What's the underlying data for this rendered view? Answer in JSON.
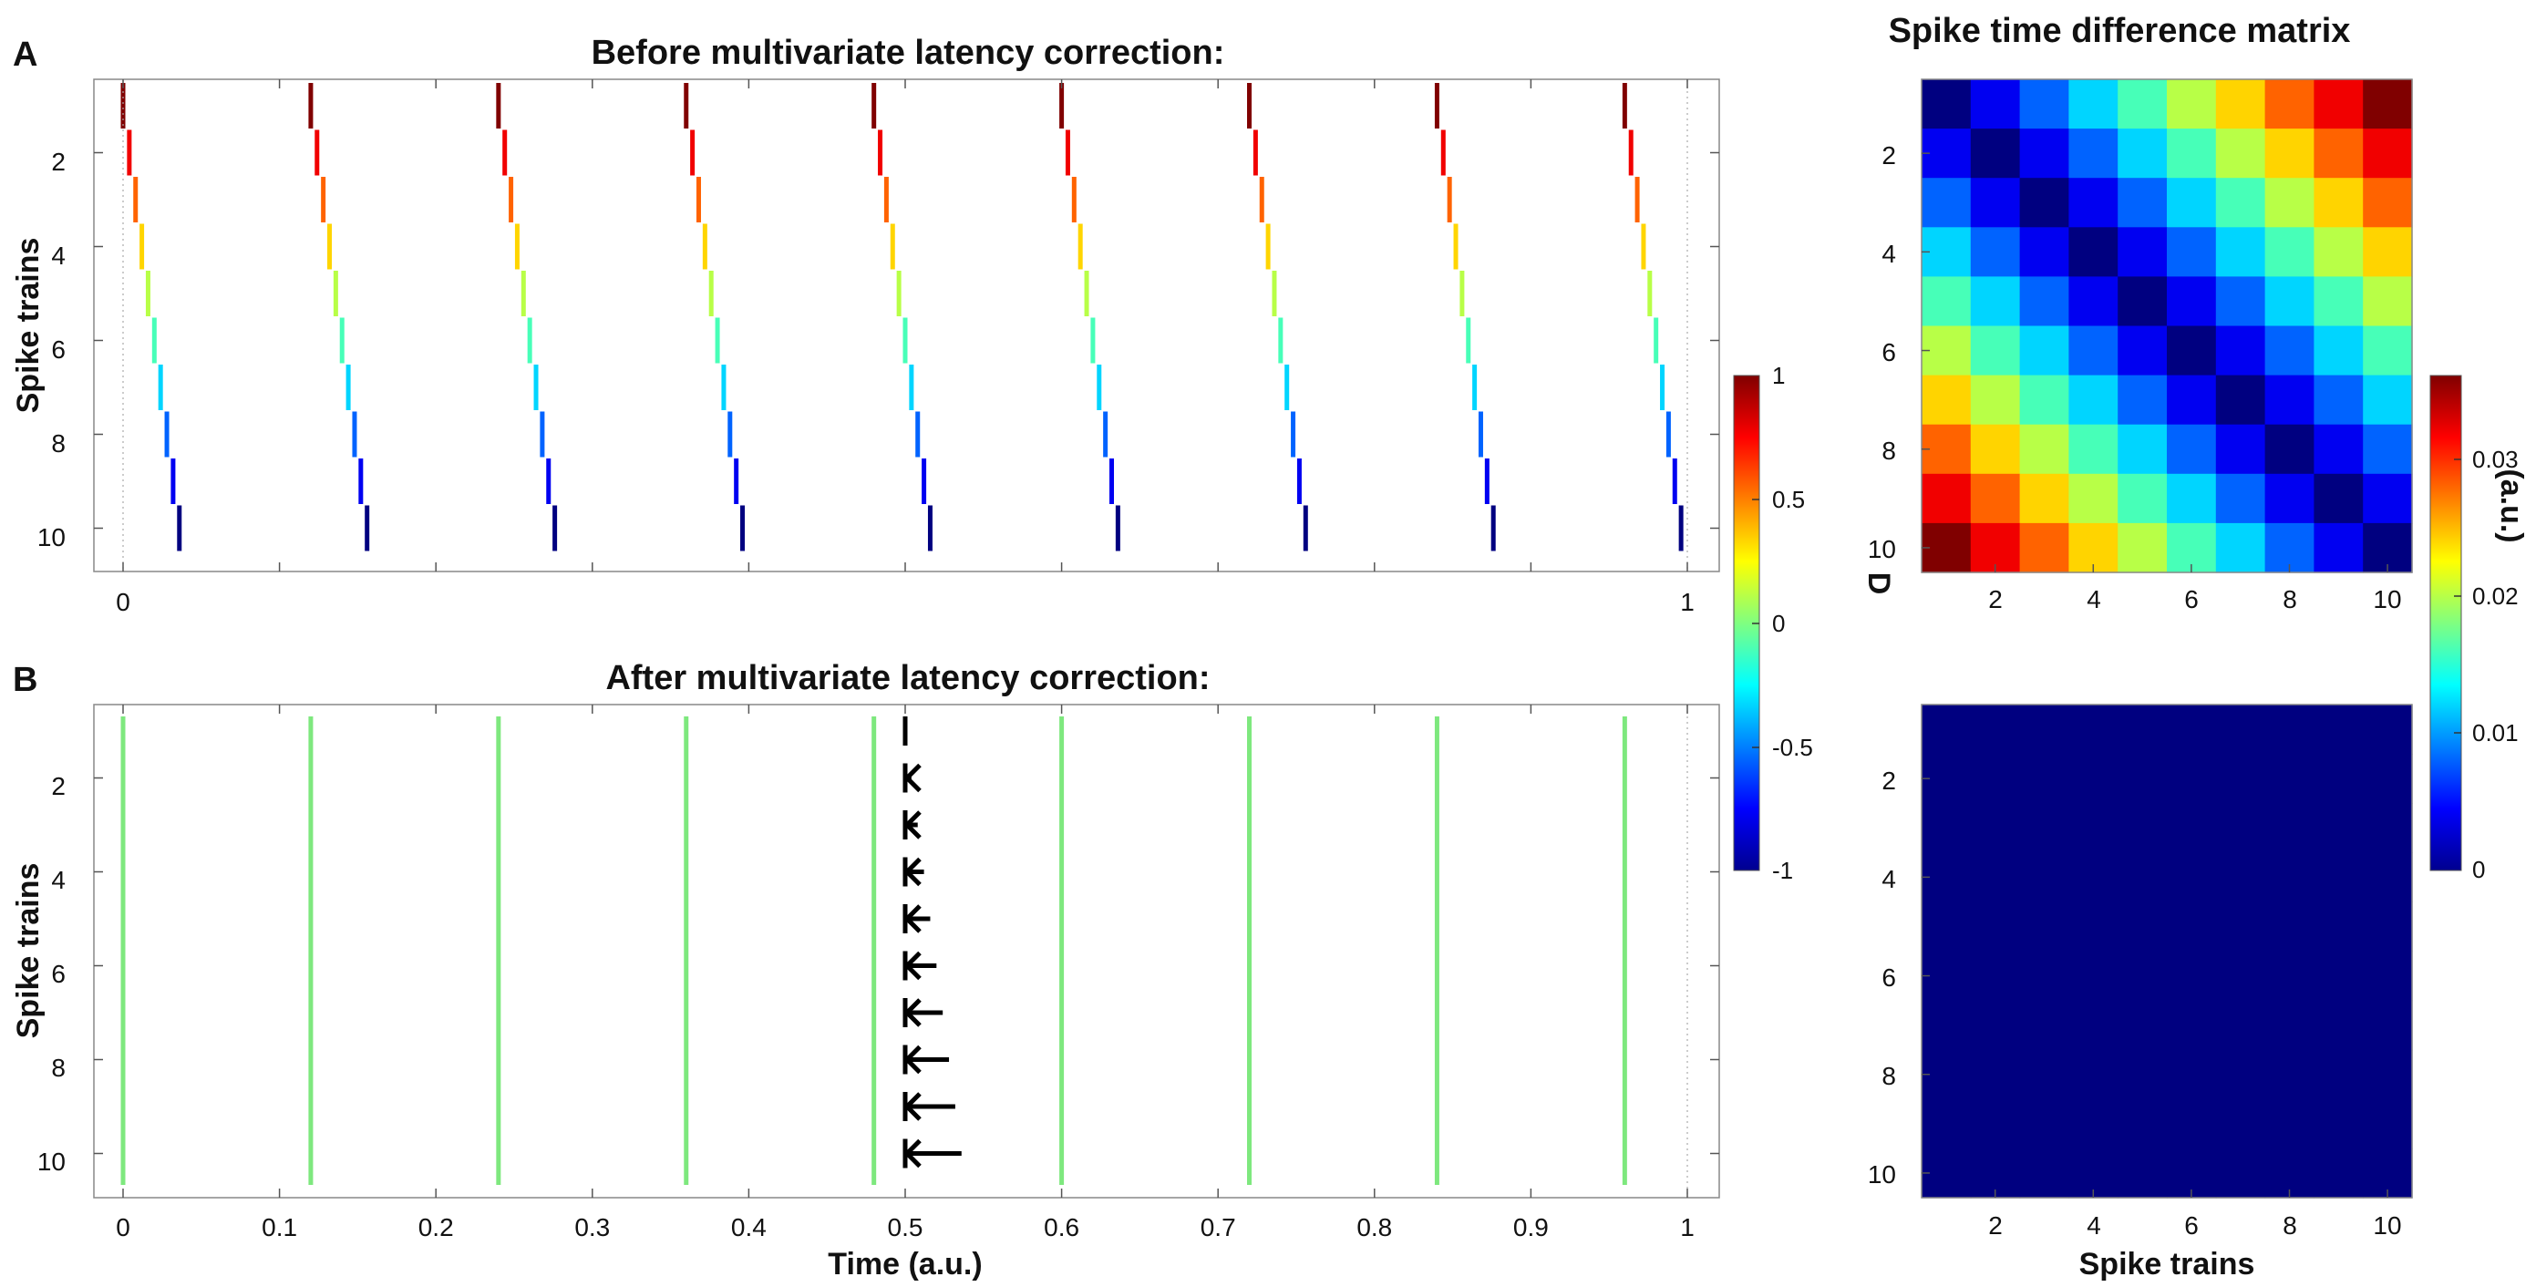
{
  "colors": {
    "raster_after": "#7ee87e",
    "arrow": "#000000",
    "matrix_zero": "#00008f",
    "frame": "#888888"
  },
  "panels": {
    "a": {
      "label": "A",
      "title": "Before multivariate latency correction:",
      "ylabel": "Spike trains",
      "x_ticks": [
        "0",
        "1"
      ],
      "y_ticks": [
        "2",
        "4",
        "6",
        "8",
        "10"
      ]
    },
    "b": {
      "label": "B",
      "title": "After multivariate latency correction:",
      "ylabel": "Spike trains",
      "xlabel": "Time (a.u.)",
      "x_ticks": [
        "0",
        "0.1",
        "0.2",
        "0.3",
        "0.4",
        "0.5",
        "0.6",
        "0.7",
        "0.8",
        "0.9",
        "1"
      ],
      "y_ticks": [
        "2",
        "4",
        "6",
        "8",
        "10"
      ]
    },
    "matrix_top": {
      "title": "Spike time difference matrix",
      "x_ticks": [
        "2",
        "4",
        "6",
        "8",
        "10"
      ],
      "y_ticks": [
        "2",
        "4",
        "6",
        "8",
        "10"
      ]
    },
    "matrix_bottom": {
      "xlabel": "Spike trains",
      "x_ticks": [
        "2",
        "4",
        "6",
        "8",
        "10"
      ],
      "y_ticks": [
        "2",
        "4",
        "6",
        "8",
        "10"
      ]
    }
  },
  "colorbar_d": {
    "label": "D",
    "ticks": [
      "1",
      "0.5",
      "0",
      "-0.5",
      "-1"
    ],
    "range": [
      -1,
      1
    ]
  },
  "colorbar_matrix": {
    "label": "(a.u.)",
    "ticks": [
      "0.03",
      "0.02",
      "0.01",
      "0"
    ],
    "range": [
      0,
      0.036
    ]
  },
  "chart_data": [
    {
      "type": "scatter",
      "subtype": "spike-raster",
      "title": "Before multivariate latency correction:",
      "ylabel": "Spike trains",
      "xlim": [
        0,
        1
      ],
      "ylim": [
        0.5,
        10.5
      ],
      "num_trains": 10,
      "event_starts": [
        0,
        0.12,
        0.24,
        0.36,
        0.48,
        0.6,
        0.72,
        0.84,
        0.96
      ],
      "offset_per_train": 0.004,
      "spike_color_value_by_train": [
        1,
        0.778,
        0.556,
        0.333,
        0.111,
        -0.111,
        -0.333,
        -0.556,
        -0.778,
        -1
      ]
    },
    {
      "type": "scatter",
      "subtype": "spike-raster",
      "title": "After multivariate latency correction:",
      "xlabel": "Time (a.u.)",
      "ylabel": "Spike trains",
      "xlim": [
        0,
        1
      ],
      "ylim": [
        0.5,
        10.5
      ],
      "num_trains": 10,
      "event_times": [
        0,
        0.12,
        0.24,
        0.36,
        0.48,
        0.6,
        0.72,
        0.84,
        0.96
      ],
      "shift_arrows": {
        "at_time": 0.5,
        "shift_by_train": [
          0,
          0.004,
          0.008,
          0.012,
          0.016,
          0.02,
          0.024,
          0.028,
          0.032,
          0.036
        ]
      }
    },
    {
      "type": "heatmap",
      "title": "Spike time difference matrix",
      "rows": 10,
      "cols": 10,
      "value": "0.004 * |row - col|",
      "clim": [
        0,
        0.036
      ]
    },
    {
      "type": "heatmap",
      "xlabel": "Spike trains",
      "rows": 10,
      "cols": 10,
      "value": "0",
      "clim": [
        0,
        0.036
      ]
    }
  ]
}
